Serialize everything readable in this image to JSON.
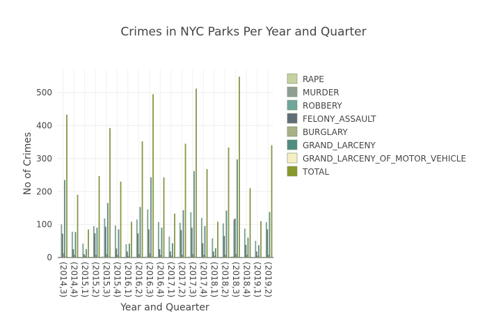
{
  "chart_data": {
    "type": "bar",
    "title": "Crimes in NYC Parks Per Year and Quarter",
    "xlabel": "Year and Quearter",
    "ylabel": "No of Crimes",
    "ylim": [
      0,
      570
    ],
    "yticks": [
      0,
      100,
      200,
      300,
      400,
      500
    ],
    "grid": true,
    "legend_position": "right",
    "categories": [
      "(2014,3)",
      "(2014,4)",
      "(2015,1)",
      "(2015,2)",
      "(2015,3)",
      "(2015,4)",
      "(2016,1)",
      "(2016,2)",
      "(2016,3)",
      "(2016,4)",
      "(2017,1)",
      "(2017,2)",
      "(2017,3)",
      "(2017,4)",
      "(2018,1)",
      "(2018,2)",
      "(2018,3)",
      "(2018,4)",
      "(2019,1)",
      "(2019,2)"
    ],
    "series": [
      {
        "name": "RAPE",
        "color": "#c5d1a0",
        "values": [
          2,
          1,
          1,
          2,
          3,
          1,
          1,
          2,
          3,
          2,
          1,
          2,
          3,
          2,
          1,
          2,
          3,
          1,
          1,
          2
        ]
      },
      {
        "name": "MURDER",
        "color": "#8fa093",
        "values": [
          1,
          1,
          0,
          1,
          1,
          1,
          0,
          1,
          1,
          1,
          0,
          1,
          1,
          1,
          0,
          1,
          2,
          1,
          0,
          1
        ]
      },
      {
        "name": "ROBBERY",
        "color": "#6fa79a",
        "values": [
          100,
          78,
          42,
          95,
          118,
          97,
          40,
          115,
          145,
          107,
          63,
          105,
          137,
          120,
          58,
          103,
          115,
          87,
          50,
          107
        ]
      },
      {
        "name": "FELONY_ASSAULT",
        "color": "#5f6e78",
        "values": [
          72,
          25,
          10,
          73,
          93,
          27,
          18,
          73,
          85,
          25,
          18,
          83,
          90,
          43,
          18,
          65,
          118,
          38,
          18,
          85
        ]
      },
      {
        "name": "BURGLARY",
        "color": "#a7b088",
        "values": [
          12,
          8,
          5,
          8,
          10,
          8,
          5,
          10,
          12,
          8,
          5,
          8,
          10,
          8,
          5,
          8,
          10,
          8,
          5,
          8
        ]
      },
      {
        "name": "GRAND_LARCENY",
        "color": "#4f8c84",
        "values": [
          235,
          77,
          25,
          90,
          165,
          85,
          42,
          153,
          243,
          90,
          43,
          143,
          262,
          95,
          28,
          142,
          297,
          60,
          37,
          138
        ]
      },
      {
        "name": "GRAND_LARCENY_OF_MOTOR_VEHICLE",
        "color": "#f4f0c4",
        "values": [
          3,
          2,
          1,
          2,
          3,
          2,
          1,
          2,
          3,
          2,
          1,
          2,
          3,
          2,
          1,
          2,
          3,
          2,
          1,
          2
        ]
      },
      {
        "name": "TOTAL",
        "color": "#8a9a2a",
        "values": [
          433,
          190,
          85,
          247,
          392,
          230,
          108,
          352,
          495,
          243,
          133,
          345,
          512,
          268,
          108,
          333,
          548,
          210,
          110,
          340
        ]
      }
    ]
  }
}
